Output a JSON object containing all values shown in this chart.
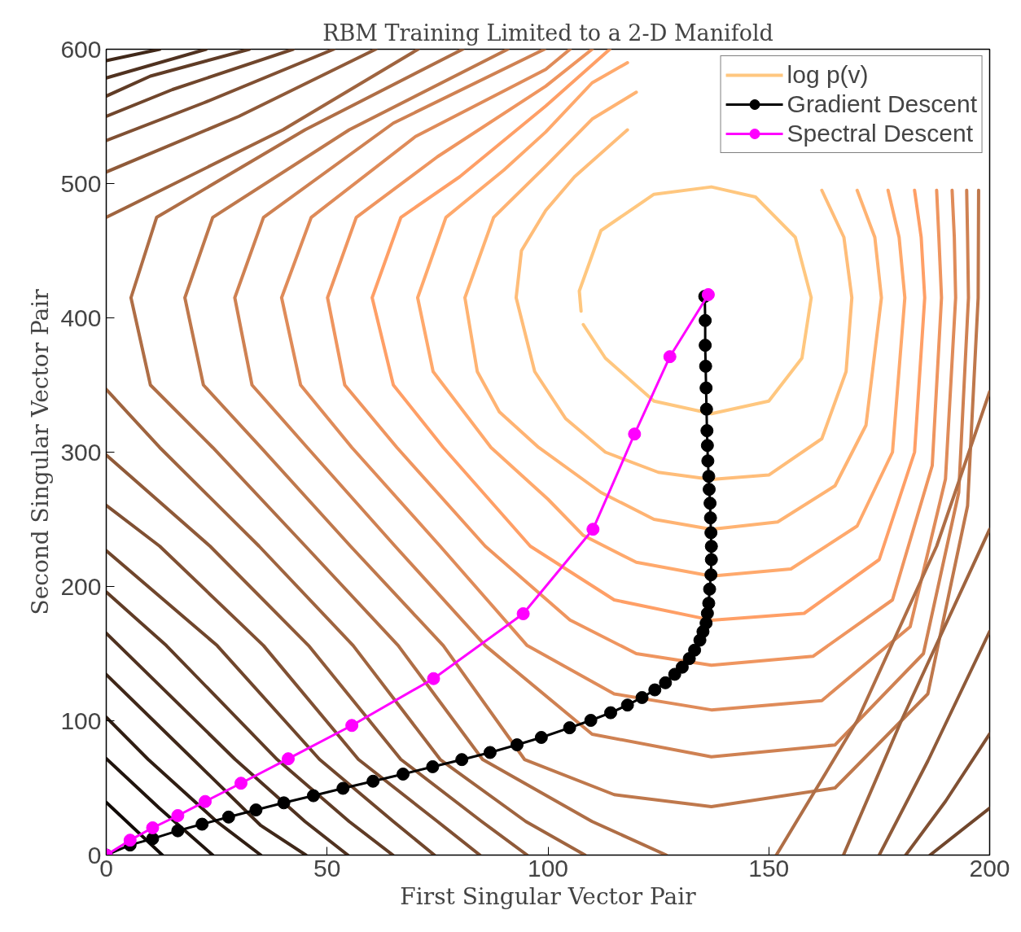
{
  "chart_data": {
    "type": "line",
    "title": "RBM Training Limited to a 2-D Manifold",
    "xlabel": "First Singular Vector Pair",
    "ylabel": "Second Singular Vector Pair",
    "xlim": [
      0,
      200
    ],
    "ylim": [
      0,
      600
    ],
    "xticks": [
      0,
      50,
      100,
      150,
      200
    ],
    "yticks": [
      0,
      100,
      200,
      300,
      400,
      500,
      600
    ],
    "legend": "top right",
    "series": [
      {
        "name": "log p(v)",
        "color": "#ffc77f",
        "marker": "none",
        "x": [
          108,
          113,
          124,
          137,
          150,
          157.5,
          159.6,
          156,
          147,
          137,
          124,
          112,
          107.1,
          107.5
        ],
        "values": [
          395,
          370,
          338,
          328.6,
          338,
          370,
          415,
          460,
          490,
          497.5,
          492,
          465,
          420,
          405
        ]
      },
      {
        "color": "#ffbd79",
        "marker": "none",
        "x": [
          118,
          106,
          99.5,
          94,
          92.8,
          97,
          104,
          113,
          125,
          137,
          150,
          162,
          167.5,
          168.8,
          167,
          162
        ],
        "values": [
          540,
          505,
          480,
          450,
          415,
          360,
          325,
          300,
          285,
          279.7,
          283,
          310,
          360,
          415,
          460,
          495
        ]
      },
      {
        "color": "#ffb372",
        "marker": "none",
        "x": [
          120,
          110,
          99.5,
          87.7,
          81.2,
          84,
          89,
          97.9,
          112,
          124,
          137,
          152,
          165,
          172,
          175.5,
          174,
          170
        ],
        "values": [
          568,
          548,
          513,
          474.8,
          415,
          360,
          330,
          303.5,
          270,
          250,
          242.6,
          248,
          275,
          320,
          415,
          460,
          495
        ]
      },
      {
        "color": "#ffa96c",
        "marker": "none",
        "x": [
          118,
          110,
          99.5,
          90,
          76.9,
          70.5,
          74,
          87.1,
          100,
          108,
          120,
          137,
          155,
          170,
          178,
          180.8,
          179.5,
          177
        ],
        "values": [
          590,
          575,
          538.4,
          510,
          474.8,
          415,
          360,
          303.5,
          265,
          238,
          218,
          207.7,
          213,
          245,
          300,
          415,
          460,
          495
        ]
      },
      {
        "color": "#ff9f66",
        "marker": "none",
        "x": [
          114,
          99.5,
          80,
          66.7,
          60.2,
          65,
          76.3,
          96,
          115,
          137,
          158,
          175,
          183,
          185.3,
          184.5,
          183
        ],
        "values": [
          600,
          557.7,
          505,
          474.8,
          415,
          350,
          303.5,
          230,
          190,
          174.9,
          180,
          220,
          300,
          415,
          460,
          495
        ]
      },
      {
        "color": "#ef955f",
        "marker": "none",
        "x": [
          110,
          99.5,
          75,
          56.6,
          50.1,
          54,
          65.8,
          85.8,
          105,
          120,
          137,
          160,
          178,
          187,
          189.1,
          188.5,
          188
        ],
        "values": [
          600,
          572.5,
          520,
          474.8,
          415,
          350,
          303.5,
          230,
          175,
          150,
          141.4,
          148,
          190,
          290,
          415,
          460,
          495
        ]
      },
      {
        "color": "#df8b59",
        "marker": "none",
        "x": [
          105,
          99.5,
          70,
          46.4,
          39.7,
          44,
          55.6,
          75.6,
          95.3,
          115,
          137,
          162,
          182,
          190,
          192.3,
          192,
          191.5
        ],
        "values": [
          600,
          585,
          535,
          474.8,
          415,
          350,
          303.5,
          230,
          156,
          120,
          108.1,
          115,
          170,
          280,
          415,
          460,
          495
        ]
      },
      {
        "color": "#cf8152",
        "marker": "none",
        "x": [
          99.2,
          65,
          35.6,
          29.1,
          33,
          45.5,
          65.4,
          85.8,
          110,
          137,
          165,
          185,
          193,
          195.2,
          195,
          194.8
        ],
        "values": [
          600,
          545,
          474.8,
          415,
          350,
          303.5,
          230,
          156,
          90,
          73.2,
          82,
          150,
          270,
          415,
          460,
          495
        ]
      },
      {
        "color": "#bf784c",
        "marker": "none",
        "x": [
          90.9,
          55,
          24.1,
          17.8,
          22,
          35,
          55.3,
          76.3,
          94.7,
          115,
          137,
          165,
          186,
          195,
          197.4,
          197.5
        ],
        "values": [
          600,
          540,
          474.8,
          415,
          350,
          303.5,
          230,
          156,
          71.2,
          45,
          36.1,
          50,
          120,
          260,
          415,
          495
        ]
      },
      {
        "color": "#af6e46",
        "marker": "none",
        "x": [
          80.7,
          45,
          11.4,
          5.6,
          10,
          24.1,
          45.1,
          66.1,
          85.2,
          110,
          126.8,
          null,
          151.7,
          170,
          188,
          200
        ],
        "values": [
          600,
          540,
          474.8,
          415,
          350,
          303.5,
          230,
          156,
          71.2,
          25,
          0,
          null,
          0,
          100,
          230,
          345
        ]
      },
      {
        "color": "#9f643f",
        "marker": "none",
        "x": [
          70.6,
          40,
          0,
          null,
          0,
          12.1,
          34.6,
          55.9,
          75.6,
          95,
          108.4,
          null,
          166.9,
          180,
          200
        ],
        "values": [
          600,
          540,
          474.8,
          null,
          346.7,
          303.5,
          230,
          156,
          71.2,
          25,
          0,
          null,
          0,
          100,
          242.6
        ]
      },
      {
        "color": "#8f5a39",
        "marker": "none",
        "x": [
          61,
          30,
          0,
          null,
          0,
          23.5,
          45.8,
          66.7,
          85,
          95.3,
          null,
          175,
          186,
          200
        ],
        "values": [
          600,
          550,
          508.6,
          null,
          297.9,
          230,
          156,
          71.2,
          25,
          0,
          null,
          0,
          70,
          166.5
        ]
      },
      {
        "color": "#805033",
        "marker": "none",
        "x": [
          51.5,
          22,
          0,
          null,
          0,
          12.1,
          35.6,
          57.1,
          75,
          84.6,
          null,
          181,
          190,
          200
        ],
        "values": [
          600,
          560,
          532,
          null,
          260.4,
          230,
          156,
          71.2,
          25,
          0,
          null,
          0,
          40,
          90.3
        ]
      },
      {
        "color": "#70462c",
        "marker": "none",
        "x": [
          42.3,
          15,
          0,
          null,
          0,
          25.1,
          48.3,
          65,
          74.3,
          null,
          186.5,
          200
        ],
        "values": [
          600,
          570,
          550.1,
          null,
          226.7,
          156,
          71.2,
          25,
          0,
          null,
          0,
          35
        ]
      },
      {
        "color": "#603c26",
        "marker": "none",
        "x": [
          32.4,
          10,
          0,
          null,
          0,
          13.6,
          38.7,
          55,
          64.9
        ],
        "values": [
          600,
          580,
          565.1,
          null,
          195.9,
          156,
          71.2,
          25,
          0
        ]
      },
      {
        "color": "#503220",
        "marker": "none",
        "x": [
          22.6,
          0,
          null,
          0,
          29.2,
          45,
          54.7
        ],
        "values": [
          600,
          578.6,
          null,
          165.2,
          71.2,
          25,
          0
        ]
      },
      {
        "color": "#402819",
        "marker": "none",
        "x": [
          12.1,
          0,
          null,
          0,
          19.7,
          35,
          45.2
        ],
        "values": [
          600,
          591.5,
          null,
          134.5,
          71.2,
          22,
          0
        ]
      },
      {
        "color": "#301e13",
        "marker": "none",
        "x": [
          0,
          9.5,
          25,
          35
        ],
        "values": [
          102.6,
          71.2,
          25,
          0
        ]
      },
      {
        "color": "#20140d",
        "marker": "none",
        "x": [
          0,
          12,
          24.1
        ],
        "values": [
          71.9,
          35,
          0
        ]
      },
      {
        "color": "#100a06",
        "marker": "none",
        "x": [
          0,
          12.7
        ],
        "values": [
          39.3,
          0
        ]
      },
      {
        "name": "Gradient Descent",
        "color": "#000000",
        "marker": "circle",
        "x": [
          0,
          5.4,
          10.5,
          16.2,
          21.7,
          27.7,
          33.9,
          40.2,
          46.9,
          53.6,
          60.4,
          67.2,
          73.9,
          80.5,
          86.9,
          93,
          98.5,
          104.9,
          109.7,
          114.2,
          118,
          121.3,
          124.2,
          126.6,
          128.7,
          130.4,
          132,
          133.2,
          134.4,
          135.1,
          135.8,
          136.1,
          136.4,
          136.6,
          136.9,
          137,
          137,
          136.9,
          136.8,
          136.7,
          136.5,
          136.4,
          136.2,
          136.1,
          136,
          135.9,
          135.8,
          135.7,
          135.6,
          135.6,
          135.5
        ],
        "values": [
          0,
          7.5,
          12.2,
          18.1,
          23,
          28.3,
          33.6,
          38.9,
          44.2,
          49.7,
          55,
          60.3,
          65.8,
          71.1,
          76.4,
          82.1,
          87.6,
          94.8,
          100.3,
          106,
          111.7,
          117.3,
          123,
          128.3,
          134.6,
          139.9,
          146.3,
          152.6,
          160,
          166.4,
          172.7,
          180,
          187.5,
          198,
          208.7,
          220,
          229.9,
          240,
          251.1,
          262,
          272.3,
          282,
          293.5,
          305,
          316,
          332,
          347.8,
          364,
          379.6,
          398,
          416
        ]
      },
      {
        "name": "Spectral Descent",
        "color": "#ff00ff",
        "marker": "circle",
        "x": [
          0,
          5.4,
          10.5,
          16.2,
          22.4,
          30.5,
          41.2,
          55.6,
          74.1,
          94.4,
          110.2,
          119.6,
          127.6,
          136.3
        ],
        "values": [
          0,
          11.1,
          20.3,
          29.4,
          39.9,
          53.5,
          71.7,
          96.5,
          131.4,
          179.7,
          242.6,
          313.5,
          371.1,
          417.3
        ]
      }
    ]
  }
}
